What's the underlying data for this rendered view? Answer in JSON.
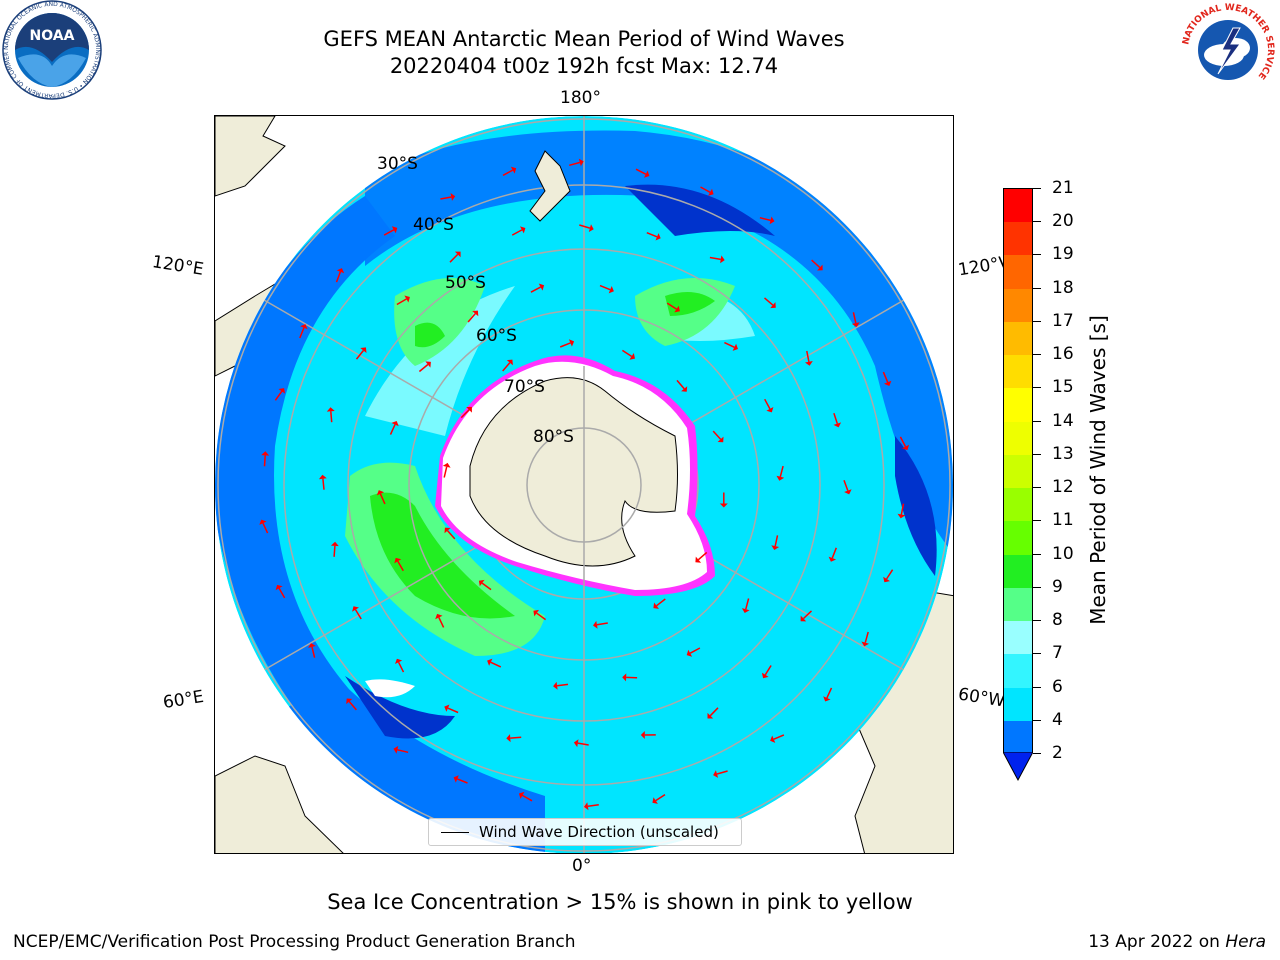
{
  "title": {
    "line1": "GEFS MEAN Antarctic Mean Period of Wind Waves",
    "line2": "20220404 t00z 192h fcst   Max: 12.74"
  },
  "map": {
    "lon_labels": {
      "top": "180°",
      "bottom": "0°",
      "left_upper": "120°E",
      "left_lower": "60°E",
      "right_upper": "120°W",
      "right_lower": "60°W"
    },
    "lat_labels": [
      "30°S",
      "40°S",
      "50°S",
      "60°S",
      "70°S",
      "80°S"
    ],
    "legend_label": "Wind Wave Direction (unscaled)"
  },
  "colorbar": {
    "title": "Mean Period of Wind Waves [s]",
    "ticks": [
      "2",
      "4",
      "6",
      "7",
      "8",
      "9",
      "10",
      "11",
      "12",
      "13",
      "14",
      "15",
      "16",
      "17",
      "18",
      "19",
      "20",
      "21"
    ],
    "colors": [
      "#0077ff",
      "#00e5ff",
      "#33f5ff",
      "#99ffff",
      "#55ff88",
      "#22ee22",
      "#66ff00",
      "#99ff00",
      "#ccff00",
      "#eeff00",
      "#ffff00",
      "#ffdd00",
      "#ffbb00",
      "#ff8800",
      "#ff6600",
      "#ff3300",
      "#ff0000"
    ],
    "extend_color": "#0022ee"
  },
  "note": "Sea Ice Concentration > 15% is shown in pink to yellow",
  "footer": {
    "left": "NCEP/EMC/Verification Post Processing Product Generation Branch",
    "right_prefix": "13 Apr 2022 on ",
    "right_host": "Hera"
  },
  "logos": {
    "left": "NOAA",
    "left_ring": "NATIONAL OCEANIC AND ATMOSPHERIC ADMINISTRATION • U.S. DEPARTMENT OF COMMERCE",
    "right_ring": "NATIONAL WEATHER SERVICE"
  }
}
